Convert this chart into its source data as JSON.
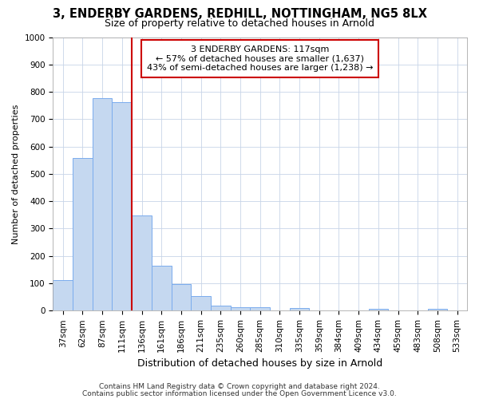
{
  "title1": "3, ENDERBY GARDENS, REDHILL, NOTTINGHAM, NG5 8LX",
  "title2": "Size of property relative to detached houses in Arnold",
  "xlabel": "Distribution of detached houses by size in Arnold",
  "ylabel": "Number of detached properties",
  "categories": [
    "37sqm",
    "62sqm",
    "87sqm",
    "111sqm",
    "136sqm",
    "161sqm",
    "186sqm",
    "211sqm",
    "235sqm",
    "260sqm",
    "285sqm",
    "310sqm",
    "335sqm",
    "359sqm",
    "384sqm",
    "409sqm",
    "434sqm",
    "459sqm",
    "483sqm",
    "508sqm",
    "533sqm"
  ],
  "values": [
    112,
    557,
    778,
    763,
    348,
    165,
    97,
    52,
    18,
    14,
    14,
    0,
    11,
    0,
    0,
    0,
    8,
    0,
    0,
    8,
    0
  ],
  "bar_color": "#c5d8f0",
  "bar_edge_color": "#7aaced",
  "vline_color": "#cc0000",
  "vline_x_index": 3.5,
  "annotation_text": "3 ENDERBY GARDENS: 117sqm\n← 57% of detached houses are smaller (1,637)\n43% of semi-detached houses are larger (1,238) →",
  "annotation_box_color": "white",
  "annotation_box_edge_color": "#cc0000",
  "ylim": [
    0,
    1000
  ],
  "yticks": [
    0,
    100,
    200,
    300,
    400,
    500,
    600,
    700,
    800,
    900,
    1000
  ],
  "footer1": "Contains HM Land Registry data © Crown copyright and database right 2024.",
  "footer2": "Contains public sector information licensed under the Open Government Licence v3.0.",
  "bg_color": "#ffffff",
  "plot_bg_color": "#ffffff",
  "grid_color": "#c8d4e8",
  "title1_fontsize": 10.5,
  "title2_fontsize": 9,
  "xlabel_fontsize": 9,
  "ylabel_fontsize": 8,
  "tick_fontsize": 7.5,
  "annot_fontsize": 8,
  "footer_fontsize": 6.5
}
